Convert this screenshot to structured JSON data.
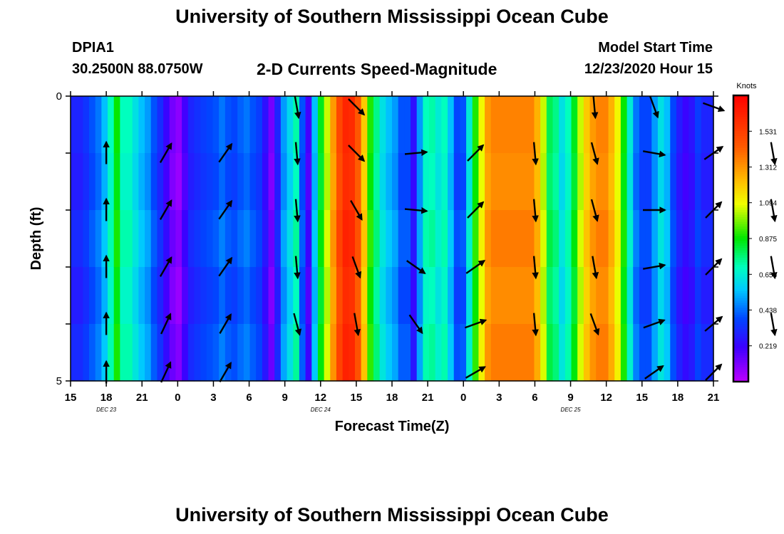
{
  "header": {
    "title": "University of Southern Mississippi Ocean Cube",
    "station_id": "DPIA1",
    "station_coords": "30.2500N 88.0750W",
    "plot_title": "2-D Currents Speed-Magnitude",
    "model_start_label": "Model Start Time",
    "model_start_value": "12/23/2020 Hour 15"
  },
  "footer": {
    "title": "University of Southern Mississippi Ocean Cube"
  },
  "chart_data": {
    "type": "heatmap",
    "title": "2-D Currents Speed-Magnitude",
    "xlabel": "Forecast Time(Z)",
    "ylabel": "Depth (ft)",
    "x_tick_labels": [
      "15",
      "18",
      "21",
      "0",
      "3",
      "6",
      "9",
      "12",
      "15",
      "18",
      "21",
      "0",
      "3",
      "6",
      "9",
      "12",
      "15",
      "18",
      "21"
    ],
    "date_labels": [
      {
        "label": "DEC 23",
        "tick_index": 1
      },
      {
        "label": "DEC 24",
        "tick_index": 7
      },
      {
        "label": "DEC 25",
        "tick_index": 14
      }
    ],
    "y_tick_labels": [
      {
        "label": "0",
        "value": 0
      },
      {
        "label": "5",
        "value": 5
      }
    ],
    "ylim": [
      0,
      5
    ],
    "depth_levels": [
      0,
      1,
      2,
      3,
      4,
      5
    ],
    "colorbar": {
      "title": "Knots",
      "min": 0.0,
      "max": 1.75,
      "tick_labels": [
        "1.531",
        "1.312",
        "1.094",
        "0.875",
        "0.656",
        "0.438",
        "0.219"
      ],
      "tick_values": [
        1.531,
        1.312,
        1.094,
        0.875,
        0.656,
        0.438,
        0.219
      ]
    },
    "speed_by_hour": [
      0.3,
      0.3,
      0.34,
      0.4,
      0.45,
      0.55,
      0.7,
      0.88,
      0.7,
      0.7,
      0.62,
      0.55,
      0.5,
      0.4,
      0.32,
      0.22,
      0.12,
      0.08,
      0.2,
      0.3,
      0.33,
      0.36,
      0.38,
      0.4,
      0.45,
      0.4,
      0.38,
      0.42,
      0.45,
      0.4,
      0.36,
      0.25,
      0.12,
      0.3,
      0.5,
      0.6,
      0.72,
      0.4,
      0.2,
      0.55,
      0.85,
      1.05,
      1.3,
      1.5,
      1.62,
      1.6,
      1.45,
      1.2,
      0.9,
      0.75,
      0.62,
      0.55,
      0.5,
      0.4,
      0.4,
      0.25,
      0.5,
      0.7,
      0.72,
      0.65,
      0.7,
      0.55,
      0.38,
      0.4,
      0.65,
      0.9,
      1.1,
      1.3,
      1.35,
      1.35,
      1.35,
      1.35,
      1.35,
      1.35,
      1.35,
      1.25,
      1.05,
      0.8,
      0.75,
      0.62,
      0.7,
      0.85,
      1.05,
      1.2,
      1.3,
      1.35,
      1.35,
      1.25,
      1.1,
      0.88,
      0.65,
      0.45,
      0.38,
      0.38,
      0.5,
      0.62,
      0.55,
      0.38,
      0.28,
      0.22,
      0.26,
      0.36,
      0.3,
      0.3
    ],
    "arrows": {
      "hours": [
        3,
        8,
        13,
        19,
        24,
        29,
        34,
        39,
        44,
        49,
        54,
        59,
        64,
        69,
        74,
        79,
        84,
        89
      ],
      "rows": [
        [
          null,
          null,
          null,
          170,
          135,
          null,
          null,
          null,
          175,
          160,
          110,
          null,
          165,
          170,
          160,
          150,
          170,
          145
        ],
        [
          0,
          30,
          35,
          175,
          135,
          85,
          45,
          175,
          165,
          100,
          55,
          170,
          170,
          160,
          150,
          165,
          125
        ],
        [
          0,
          30,
          35,
          175,
          150,
          95,
          45,
          175,
          165,
          90,
          45,
          170,
          170,
          150,
          150,
          165,
          125
        ],
        [
          0,
          30,
          35,
          175,
          160,
          125,
          55,
          175,
          170,
          80,
          45,
          170,
          170,
          150,
          140,
          165,
          125
        ],
        [
          0,
          25,
          30,
          165,
          170,
          145,
          70,
          175,
          160,
          70,
          50,
          170,
          170,
          150,
          150,
          165,
          125
        ],
        [
          0,
          25,
          30,
          null,
          null,
          null,
          60,
          null,
          null,
          55,
          45,
          null,
          null,
          null,
          null,
          null,
          null
        ]
      ]
    }
  }
}
